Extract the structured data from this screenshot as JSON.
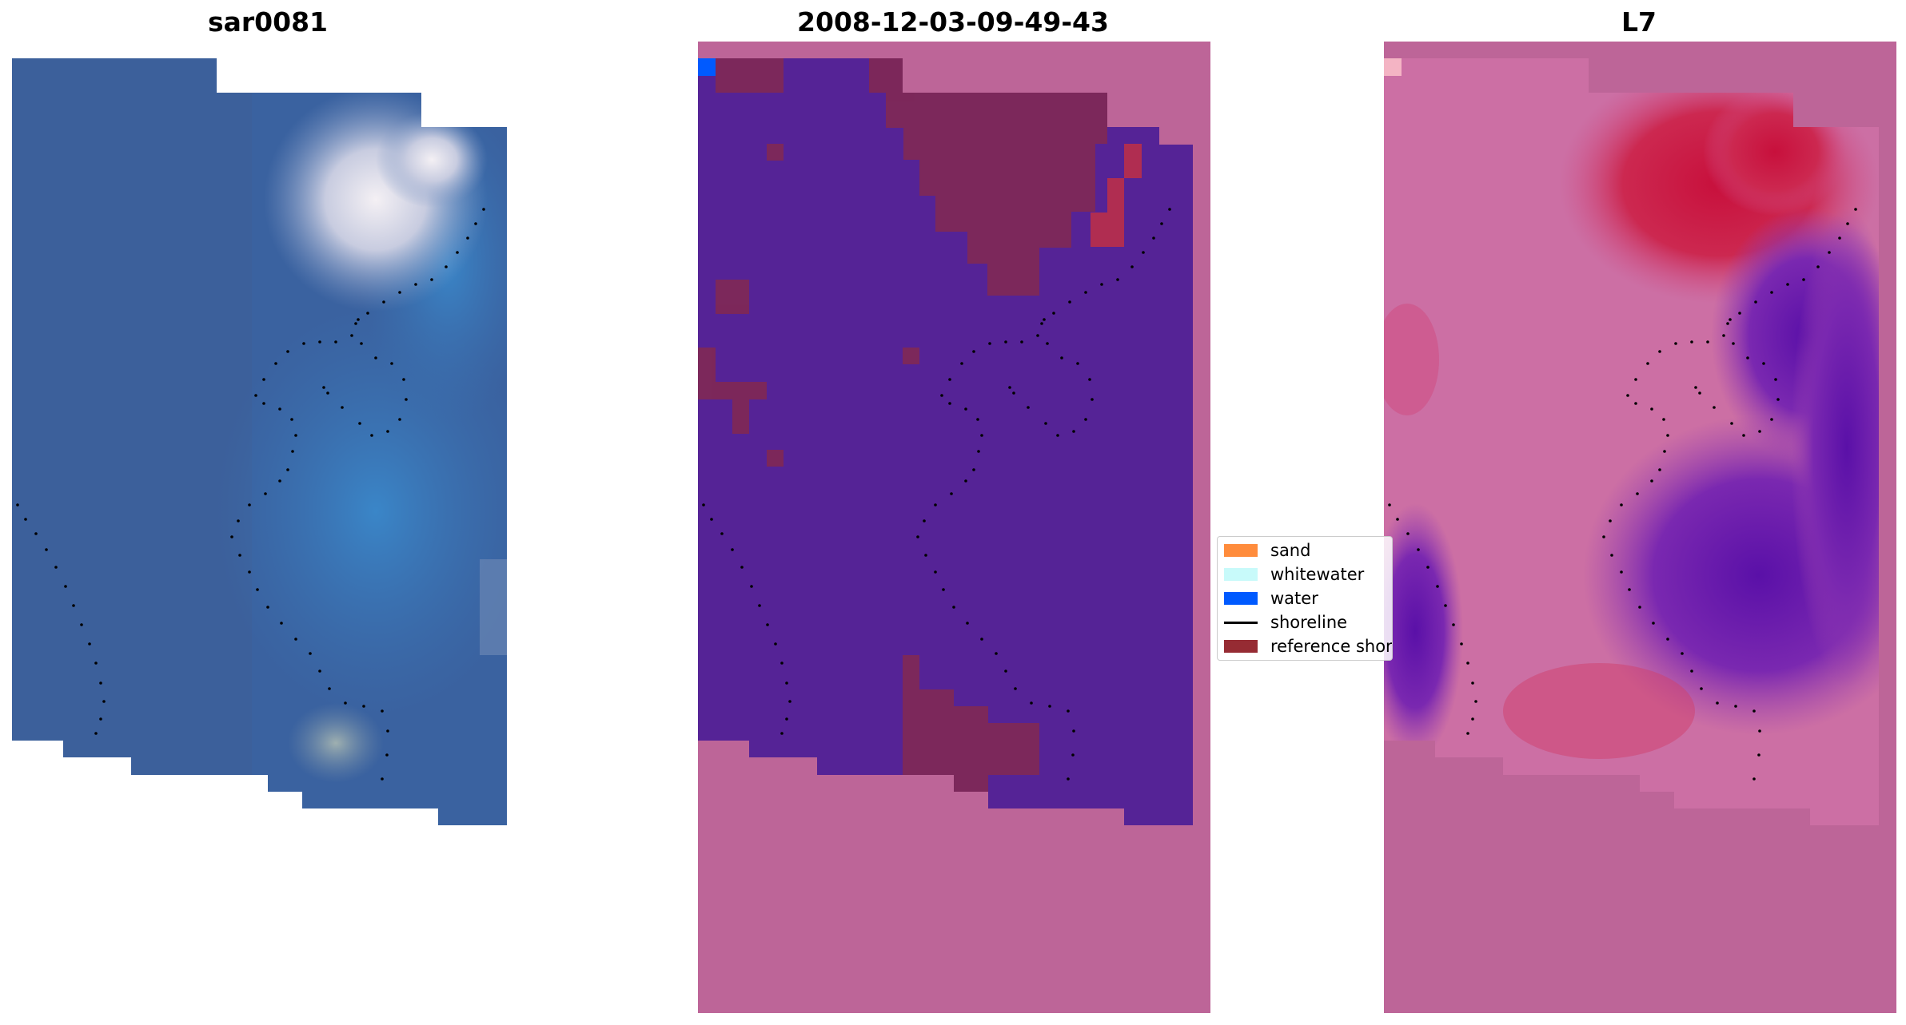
{
  "panels": {
    "rgb": {
      "title": "sar0081"
    },
    "classification": {
      "title": "2008-12-03-09-49-43"
    },
    "index": {
      "title": "L7"
    }
  },
  "legend": {
    "items": [
      {
        "label": "sand",
        "color": "#ff8c3c",
        "kind": "patch"
      },
      {
        "label": "whitewater",
        "color": "#c8fafa",
        "kind": "patch"
      },
      {
        "label": "water",
        "color": "#005aff",
        "kind": "patch"
      },
      {
        "label": "shoreline",
        "color": "#000000",
        "kind": "line"
      },
      {
        "label": "reference shoreline",
        "color": "#962b33",
        "kind": "patch"
      }
    ]
  },
  "colors": {
    "masked_pink": "#bd6598",
    "water_class": "#552396",
    "rgb_water": "#3a64a2"
  }
}
